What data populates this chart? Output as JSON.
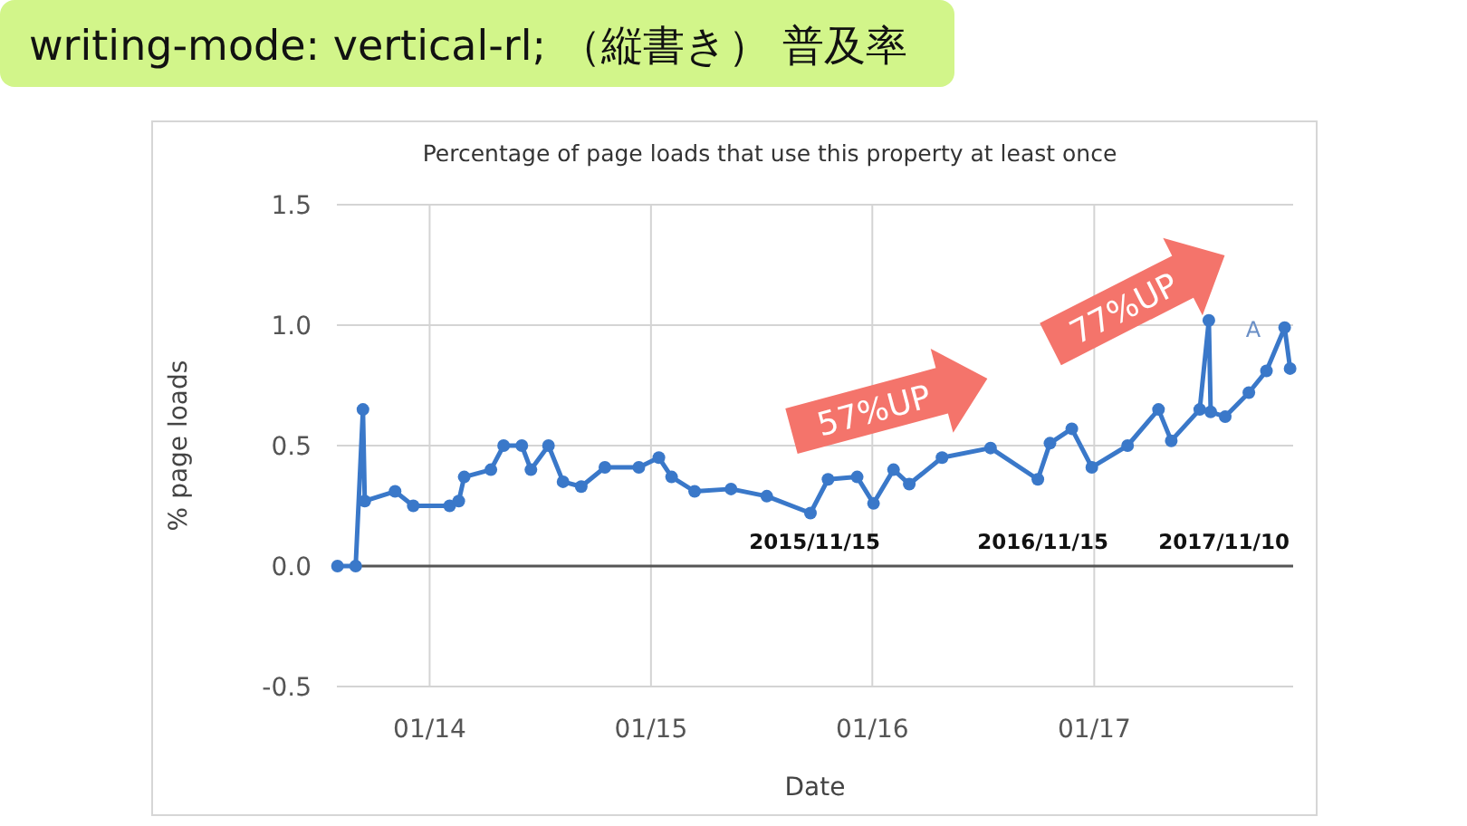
{
  "chart_data": {
    "type": "line",
    "title": "writing-mode: vertical-rl; （縦書き） 普及率",
    "subtitle": "Percentage of page loads that use this property at least once",
    "xlabel": "Date",
    "ylabel": "% page loads",
    "x": [
      "2013-08-02",
      "2013-09-01",
      "2013-09-13",
      "2013-09-16",
      "2013-11-05",
      "2013-12-05",
      "2014-02-03",
      "2014-02-18",
      "2014-02-27",
      "2014-04-12",
      "2014-05-03",
      "2014-06-02",
      "2014-06-17",
      "2014-07-16",
      "2014-08-09",
      "2014-09-08",
      "2014-10-17",
      "2014-12-12",
      "2015-01-14",
      "2015-02-04",
      "2015-03-14",
      "2015-05-13",
      "2015-07-11",
      "2015-09-21",
      "2015-10-20",
      "2015-12-07",
      "2016-01-03",
      "2016-02-05",
      "2016-03-02",
      "2016-04-25",
      "2016-07-14",
      "2016-09-30",
      "2016-10-20",
      "2016-11-25",
      "2016-12-28",
      "2017-02-25",
      "2017-04-17",
      "2017-05-08",
      "2017-06-24",
      "2017-07-09",
      "2017-07-12",
      "2017-08-05",
      "2017-09-13",
      "2017-10-12",
      "2017-11-11",
      "2017-11-20"
    ],
    "series": [
      {
        "color": "#3a78c9",
        "values": [
          0,
          0,
          0.65,
          0.27,
          0.31,
          0.25,
          0.25,
          0.27,
          0.37,
          0.4,
          0.5,
          0.5,
          0.4,
          0.5,
          0.35,
          0.33,
          0.41,
          0.41,
          0.45,
          0.37,
          0.31,
          0.32,
          0.29,
          0.22,
          0.36,
          0.37,
          0.26,
          0.4,
          0.34,
          0.45,
          0.49,
          0.36,
          0.51,
          0.57,
          0.41,
          0.5,
          0.65,
          0.52,
          0.65,
          1.02,
          0.64,
          0.62,
          0.72,
          0.81,
          0.99,
          0.82
        ]
      }
    ],
    "xlim": [
      "2013-08-01",
      "2017-11-25"
    ],
    "xticks": [
      {
        "value": "2014-01-01",
        "label": "01/14"
      },
      {
        "value": "2015-01-01",
        "label": "01/15"
      },
      {
        "value": "2016-01-01",
        "label": "01/16"
      },
      {
        "value": "2017-01-01",
        "label": "01/17"
      }
    ],
    "ylim": [
      -0.5,
      1.5
    ],
    "yticks": [
      {
        "value": -0.5,
        "label": "-0.5"
      },
      {
        "value": 0,
        "label": "0.0"
      },
      {
        "value": 0.5,
        "label": "0.5"
      },
      {
        "value": 1,
        "label": "1.0"
      },
      {
        "value": 1.5,
        "label": "1.5"
      }
    ],
    "grid": true,
    "marker": "circle",
    "line_style": "solid",
    "annotations": [
      "2015/11/15",
      "2016/11/15",
      "2017/11/10",
      "A",
      "57%UP",
      "77%UP"
    ]
  }
}
